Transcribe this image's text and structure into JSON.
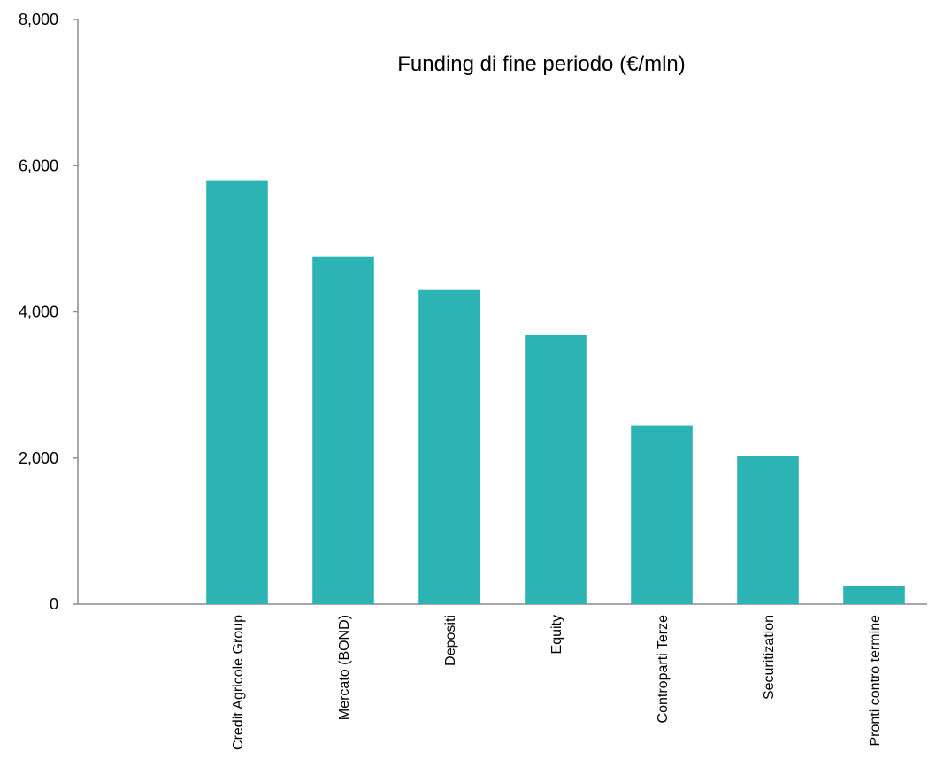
{
  "chart_data": {
    "type": "bar",
    "title": "Funding di fine periodo (€/mln)",
    "xlabel": "",
    "ylabel": "",
    "categories": [
      "",
      "Credit Agricole Group",
      "Mercato (BOND)",
      "Depositi",
      "Equity",
      "Controparti Terze",
      "Securitization",
      "Pronti contro termine"
    ],
    "values": [
      0,
      5790,
      4760,
      4300,
      3680,
      2450,
      2030,
      250
    ],
    "ylim": [
      0,
      8000
    ],
    "yticks": [
      0,
      2000,
      4000,
      6000,
      8000
    ],
    "ytick_labels": [
      "0",
      "2,000",
      "4,000",
      "6,000",
      "8,000"
    ],
    "bar_color": "#2cb3b3",
    "grid": false,
    "legend": "none"
  }
}
